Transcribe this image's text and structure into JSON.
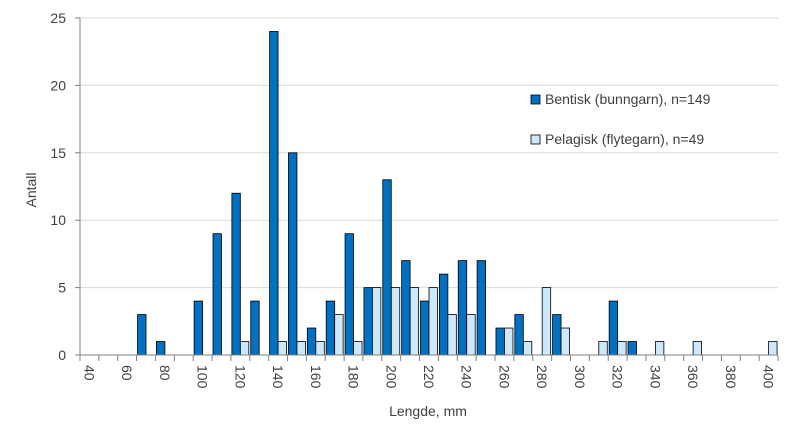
{
  "chart_data": {
    "type": "bar",
    "title": "",
    "xlabel": "Lengde, mm",
    "ylabel": "Antall",
    "ylim": [
      0,
      25
    ],
    "yticks": [
      0,
      5,
      10,
      15,
      20,
      25
    ],
    "grid": true,
    "legend_position": "right",
    "categories": [
      40,
      50,
      60,
      70,
      80,
      90,
      100,
      110,
      120,
      130,
      140,
      150,
      160,
      170,
      180,
      190,
      200,
      210,
      220,
      230,
      240,
      250,
      260,
      270,
      280,
      290,
      300,
      310,
      320,
      330,
      340,
      350,
      360,
      370,
      380,
      390,
      400
    ],
    "xtick_labels": [
      "40",
      "60",
      "80",
      "100",
      "120",
      "140",
      "160",
      "180",
      "200",
      "220",
      "240",
      "260",
      "280",
      "300",
      "320",
      "340",
      "360",
      "380",
      "400"
    ],
    "series": [
      {
        "name": "Bentisk (bunngarn), n=149",
        "color": "#0070C0",
        "values": [
          0,
          0,
          0,
          3,
          1,
          0,
          4,
          9,
          12,
          4,
          24,
          15,
          2,
          4,
          9,
          5,
          13,
          7,
          4,
          6,
          7,
          7,
          2,
          3,
          0,
          3,
          0,
          0,
          4,
          1,
          0,
          0,
          0,
          0,
          0,
          0,
          0
        ]
      },
      {
        "name": "Pelagisk (flytegarn), n=49",
        "color": "#CCE8FA",
        "values": [
          0,
          0,
          0,
          0,
          0,
          0,
          0,
          0,
          1,
          0,
          1,
          1,
          1,
          3,
          1,
          5,
          5,
          5,
          5,
          3,
          3,
          0,
          2,
          1,
          5,
          2,
          0,
          1,
          1,
          0,
          1,
          0,
          1,
          0,
          0,
          0,
          1
        ]
      }
    ]
  }
}
